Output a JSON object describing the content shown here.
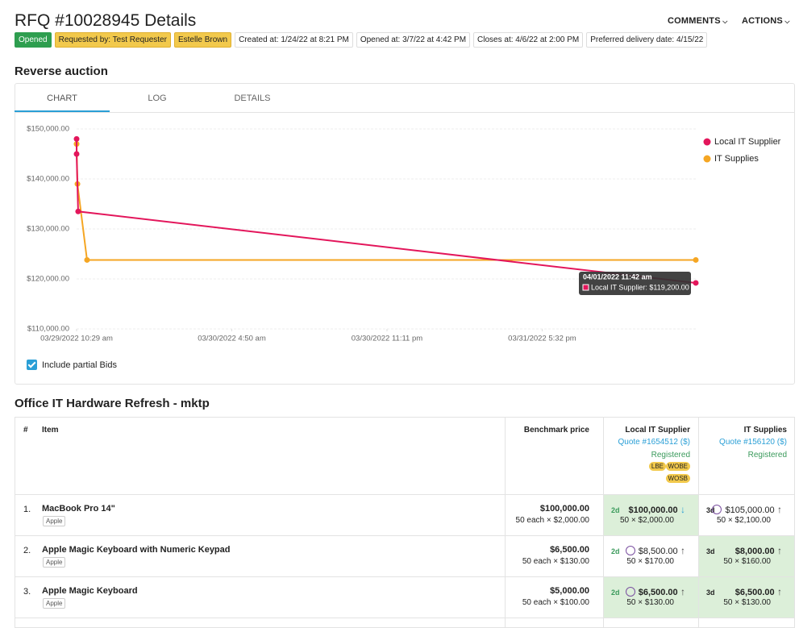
{
  "header": {
    "title": "RFQ #10028945 Details",
    "badges": [
      "Opened",
      "Requested by: Test Requester",
      "Estelle Brown"
    ],
    "info": [
      "Created at: 1/24/22 at 8:21 PM",
      "Opened at: 3/7/22 at 4:42 PM",
      "Closes at: 4/6/22 at 2:00 PM",
      "Preferred delivery date: 4/15/22"
    ],
    "buttons": [
      "COMMENTS",
      "ACTIONS"
    ]
  },
  "auction": {
    "title": "Reverse auction",
    "tabs": [
      "CHART",
      "LOG",
      "DETAILS"
    ],
    "checkbox": "Include partial Bids"
  },
  "chart_data": {
    "type": "line",
    "xlim": [
      "2022-03-29T10:29",
      "2022-04-01T11:42"
    ],
    "xticks": [
      {
        "value": "2022-03-29T10:29",
        "label": "03/29/2022 10:29 am"
      },
      {
        "value": "2022-03-30T04:50",
        "label": "03/30/2022 4:50 am"
      },
      {
        "value": "2022-03-30T23:11",
        "label": "03/30/2022 11:11 pm"
      },
      {
        "value": "2022-03-31T17:32",
        "label": "03/31/2022 5:32 pm"
      }
    ],
    "ylim": [
      110000,
      150000
    ],
    "yticks": [
      {
        "value": 110000,
        "label": "$110,000.00"
      },
      {
        "value": 120000,
        "label": "$120,000.00"
      },
      {
        "value": 130000,
        "label": "$130,000.00"
      },
      {
        "value": 140000,
        "label": "$140,000.00"
      },
      {
        "value": 150000,
        "label": "$150,000.00"
      }
    ],
    "grid": true,
    "legend": "right",
    "series": [
      {
        "name": "Local IT Supplier",
        "color": "#e3165b",
        "x": [
          "2022-03-29T10:29",
          "2022-03-29T10:29",
          "2022-03-29T10:40",
          "2022-04-01T11:42"
        ],
        "values": [
          148000,
          145000,
          133500,
          119200
        ]
      },
      {
        "name": "IT Supplies",
        "color": "#f5a623",
        "x": [
          "2022-03-29T10:29",
          "2022-03-29T10:35",
          "2022-03-29T11:43",
          "2022-04-01T11:42"
        ],
        "values": [
          147000,
          139000,
          123800,
          123800
        ]
      }
    ],
    "tooltip": {
      "title": "04/01/2022 11:42 am",
      "text": "Local IT Supplier: $119,200.00"
    }
  },
  "table": {
    "title": "Office IT Hardware Refresh - mktp",
    "columns": [
      "#",
      "Item",
      "Benchmark price"
    ],
    "suppliers": [
      {
        "name": "Local IT Supplier",
        "quote": "Quote #1654512 ($)",
        "status": "Registered",
        "tags": [
          "LBE",
          "WOBE",
          "WOSB"
        ]
      },
      {
        "name": "IT Supplies",
        "quote": "Quote #156120 ($)",
        "status": "Registered"
      }
    ],
    "rows": [
      {
        "num": "1.",
        "item": "MacBook Pro 14\"",
        "tag": "Apple",
        "benchmark": "$100,000.00",
        "detail": "50 each × $2,000.00",
        "bids": [
          {
            "days": "2d",
            "price": "$100,000.00",
            "detail": "50 × $2,000.00",
            "best": true,
            "clock": false,
            "trend": "down"
          },
          {
            "days": "3d",
            "price": "$105,000.00",
            "detail": "50 × $2,100.00",
            "best": false,
            "clock": true,
            "trend": "up"
          }
        ]
      },
      {
        "num": "2.",
        "item": "Apple Magic Keyboard with Numeric Keypad",
        "tag": "Apple",
        "benchmark": "$6,500.00",
        "detail": "50 each × $130.00",
        "bids": [
          {
            "days": "2d",
            "price": "$8,500.00",
            "detail": "50 × $170.00",
            "best": false,
            "clock": true,
            "trend": "up"
          },
          {
            "days": "3d",
            "price": "$8,000.00",
            "detail": "50 × $160.00",
            "best": true,
            "clock": false,
            "trend": "up"
          }
        ]
      },
      {
        "num": "3.",
        "item": "Apple Magic Keyboard",
        "tag": "Apple",
        "benchmark": "$5,000.00",
        "detail": "50 each × $100.00",
        "bids": [
          {
            "days": "2d",
            "price": "$6,500.00",
            "detail": "50 × $130.00",
            "best": true,
            "clock": true,
            "trend": "up"
          },
          {
            "days": "3d",
            "price": "$6,500.00",
            "detail": "50 × $130.00",
            "best": true,
            "clock": false,
            "trend": "up"
          }
        ]
      }
    ]
  }
}
